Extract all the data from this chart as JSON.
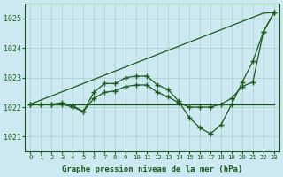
{
  "xlabel": "Graphe pression niveau de la mer (hPa)",
  "background_color": "#cce8f0",
  "grid_color": "#aacccc",
  "line_color": "#1a5c1a",
  "hours": [
    0,
    1,
    2,
    3,
    4,
    5,
    6,
    7,
    8,
    9,
    10,
    11,
    12,
    13,
    14,
    15,
    16,
    17,
    18,
    19,
    20,
    21,
    22,
    23
  ],
  "ylim": [
    1020.5,
    1025.5
  ],
  "yticks": [
    1021,
    1022,
    1023,
    1024,
    1025
  ],
  "line_flat": [
    1022.1,
    1022.1,
    1022.1,
    1022.1,
    1022.1,
    1022.1,
    1022.1,
    1022.1,
    1022.1,
    1022.1,
    1022.1,
    1022.1,
    1022.1,
    1022.1,
    1022.1,
    1022.1,
    1022.1,
    1022.1,
    1022.1,
    1022.1,
    1022.1,
    1022.1,
    1022.1,
    1022.1
  ],
  "line_main": [
    1022.1,
    1022.1,
    1022.1,
    1022.1,
    1022.0,
    1021.85,
    1022.5,
    1022.8,
    1022.8,
    1023.0,
    1023.05,
    1023.05,
    1022.75,
    1022.6,
    1022.2,
    1021.65,
    1021.3,
    1021.1,
    1021.4,
    1022.1,
    1022.85,
    1023.55,
    1024.55,
    1025.2
  ],
  "line_diag_straight": [
    1022.1,
    1022.24,
    1022.38,
    1022.52,
    1022.66,
    1022.8,
    1022.94,
    1023.08,
    1023.22,
    1023.36,
    1023.5,
    1023.64,
    1023.78,
    1023.92,
    1024.06,
    1024.2,
    1024.34,
    1024.48,
    1024.62,
    1024.76,
    1024.9,
    1025.04,
    1025.18,
    1025.2
  ],
  "line_mid": [
    1022.1,
    1022.1,
    1022.1,
    1022.1,
    1022.0,
    1021.85,
    1022.3,
    1022.5,
    1022.55,
    1022.7,
    1022.75,
    1022.75,
    1022.5,
    1022.4,
    1022.2,
    1022.1,
    1022.1,
    1022.1,
    1022.1,
    1022.3,
    1022.6,
    1022.85,
    1024.55,
    1025.2
  ]
}
